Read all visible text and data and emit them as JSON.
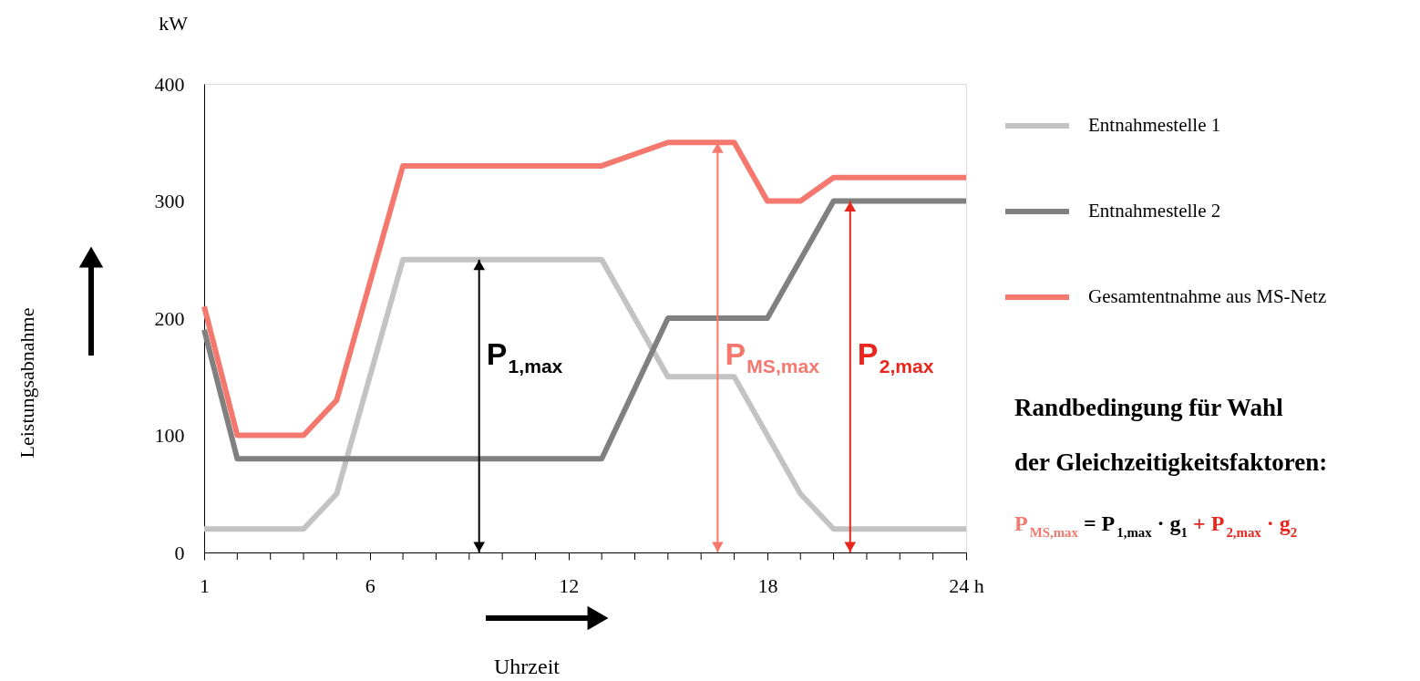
{
  "chart_data": {
    "type": "line",
    "xlabel": "Uhrzeit",
    "xlim": [
      1,
      24
    ],
    "ylim": [
      0,
      400
    ],
    "xticks": [
      1,
      {
        "value": 2,
        "label": null
      },
      {
        "value": 3,
        "label": null
      },
      {
        "value": 4,
        "label": null
      },
      {
        "value": 5,
        "label": null
      },
      6,
      {
        "value": 7,
        "label": null
      },
      {
        "value": 8,
        "label": null
      },
      {
        "value": 9,
        "label": null
      },
      {
        "value": 10,
        "label": null
      },
      {
        "value": 11,
        "label": null
      },
      12,
      {
        "value": 13,
        "label": null
      },
      {
        "value": 14,
        "label": null
      },
      {
        "value": 15,
        "label": null
      },
      {
        "value": 16,
        "label": null
      },
      {
        "value": 17,
        "label": null
      },
      18,
      {
        "value": 19,
        "label": null
      },
      {
        "value": 20,
        "label": null
      },
      {
        "value": 21,
        "label": null
      },
      {
        "value": 22,
        "label": null
      },
      {
        "value": 23,
        "label": null
      },
      {
        "value": 24,
        "label": "24  h"
      }
    ],
    "yticks": [
      0,
      100,
      200,
      300,
      400
    ],
    "series": [
      {
        "name": "Entnahmestelle 1",
        "color": "#c3c3c3",
        "x": [
          1,
          4,
          5,
          7,
          13,
          15,
          17,
          19,
          20,
          24
        ],
        "values": [
          20,
          20,
          50,
          250,
          250,
          150,
          150,
          50,
          20,
          20
        ]
      },
      {
        "name": "Entnahmestelle 2",
        "color": "#808080",
        "x": [
          1,
          2,
          13,
          15,
          18,
          20,
          24
        ],
        "values": [
          190,
          80,
          80,
          200,
          200,
          300,
          300
        ]
      },
      {
        "name": "Gesamtentnahme aus MS-Netz",
        "color": "#f4786e",
        "x": [
          1,
          2,
          4,
          5,
          7,
          13,
          15,
          17,
          18,
          19,
          20,
          24
        ],
        "values": [
          210,
          100,
          100,
          130,
          330,
          330,
          350,
          350,
          300,
          300,
          320,
          320
        ]
      },
      {
        "name": "P$_{1,max}$",
        "color": "#000000",
        "type": "line",
        "marker": "triangle",
        "x": [
          9.3,
          9.3
        ],
        "values": [
          0,
          250
        ]
      },
      {
        "name": "P$_{MS,max}$",
        "color": "#f4786e",
        "type": "line",
        "marker": "triangle",
        "x": [
          16.5,
          16.5
        ],
        "values": [
          0,
          350
        ]
      },
      {
        "name": "P$_{2,max}$",
        "color": "#e8261e",
        "type": "line",
        "marker": "triangle",
        "x": [
          20.5,
          20.5
        ],
        "values": [
          0,
          300
        ]
      }
    ],
    "annotations": [
      "kW",
      "Randbedingung für Wahl\nder Gleichzeitigkeitsfaktoren:",
      "P$_{MS,max}$ = P$_{1,max}$ · g$_{1}$ + P$_{2,max}$ · g$_{2}$",
      "Leistungsabnahme"
    ],
    "legend": "right",
    "grid": false,
    "marker": "none",
    "line_style": "solid"
  }
}
